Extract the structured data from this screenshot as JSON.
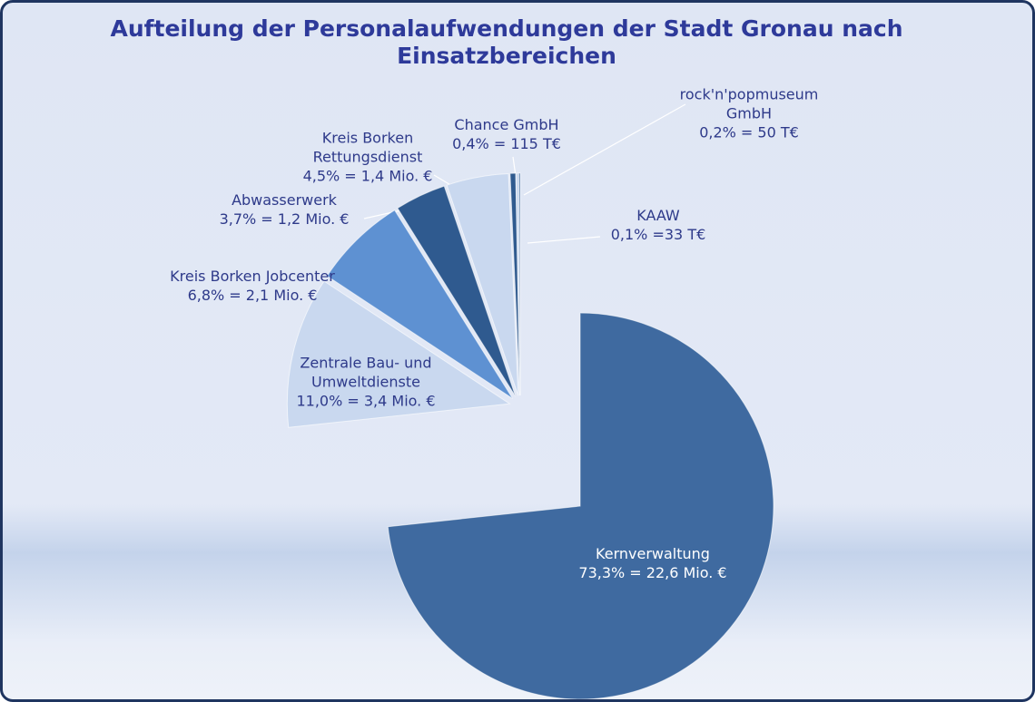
{
  "chart_data": {
    "type": "pie",
    "title": "Aufteilung der Personalaufwendungen der Stadt Gronau nach Einsatzbereichen",
    "categories": [
      "Kernverwaltung",
      "Zentrale Bau- und Umweltdienste",
      "Kreis Borken Jobcenter",
      "Abwasserwerk",
      "Kreis Borken Rettungsdienst",
      "Chance GmbH",
      "rock'n'popmuseum GmbH",
      "KAAW"
    ],
    "values": [
      73.3,
      11.0,
      6.8,
      3.7,
      4.5,
      0.4,
      0.2,
      0.1
    ],
    "value_labels": [
      "73,3% = 22,6 Mio. €",
      "11,0% = 3,4 Mio. €",
      "6,8% = 2,1 Mio. €",
      "3,7% = 1,2 Mio. €",
      "4,5% = 1,4 Mio. €",
      "0,4% = 115 T€",
      "0,2% = 50 T€",
      "0,1% =33 T€"
    ],
    "colors": [
      "#3f6aa0",
      "#c9d8ef",
      "#5e91d2",
      "#2f5a8f",
      "#c9d8ef",
      "#2f5a8f",
      "#c9d8ef",
      "#3f6aa0"
    ]
  }
}
